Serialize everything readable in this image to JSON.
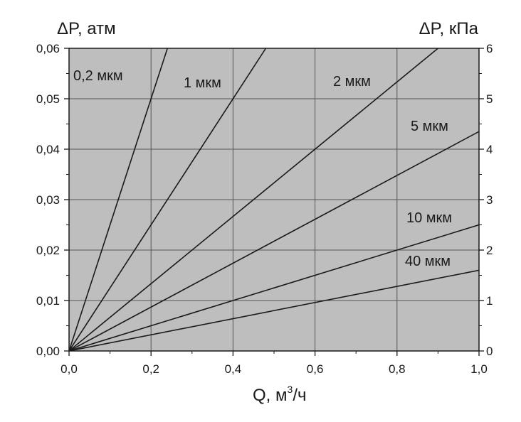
{
  "chart_data": {
    "type": "line",
    "y_left_label": "ΔP, атм",
    "y_right_label": "ΔP, кПа",
    "x_label_text": "Q, м",
    "x_label_sup": "3",
    "x_label_tail": "/ч",
    "xlim": [
      0,
      1.0
    ],
    "ylim_left": [
      0,
      0.06
    ],
    "ylim_right": [
      0,
      6
    ],
    "x_ticks": [
      "0,0",
      "0,2",
      "0,4",
      "0,6",
      "0,8",
      "1,0"
    ],
    "y_left_ticks": [
      "0,00",
      "0,01",
      "0,02",
      "0,03",
      "0,04",
      "0,05",
      "0,06"
    ],
    "y_right_ticks": [
      "0",
      "1",
      "2",
      "3",
      "4",
      "5",
      "6"
    ],
    "grid": true,
    "colors": {
      "plot_background": "#bebebe",
      "line": "#1a1a1a",
      "grid": "#555555"
    },
    "series": [
      {
        "name": "0,2 мкм",
        "x": [
          0,
          0.24
        ],
        "y": [
          0,
          0.06
        ]
      },
      {
        "name": "1 мкм",
        "x": [
          0,
          0.48
        ],
        "y": [
          0,
          0.06
        ]
      },
      {
        "name": "2 мкм",
        "x": [
          0,
          0.9
        ],
        "y": [
          0,
          0.06
        ]
      },
      {
        "name": "5 мкм",
        "x": [
          0,
          1.0
        ],
        "y": [
          0,
          0.0435
        ]
      },
      {
        "name": "10 мкм",
        "x": [
          0,
          1.0
        ],
        "y": [
          0,
          0.025
        ]
      },
      {
        "name": "40 мкм",
        "x": [
          0,
          1.0
        ],
        "y": [
          0,
          0.016
        ]
      }
    ]
  }
}
